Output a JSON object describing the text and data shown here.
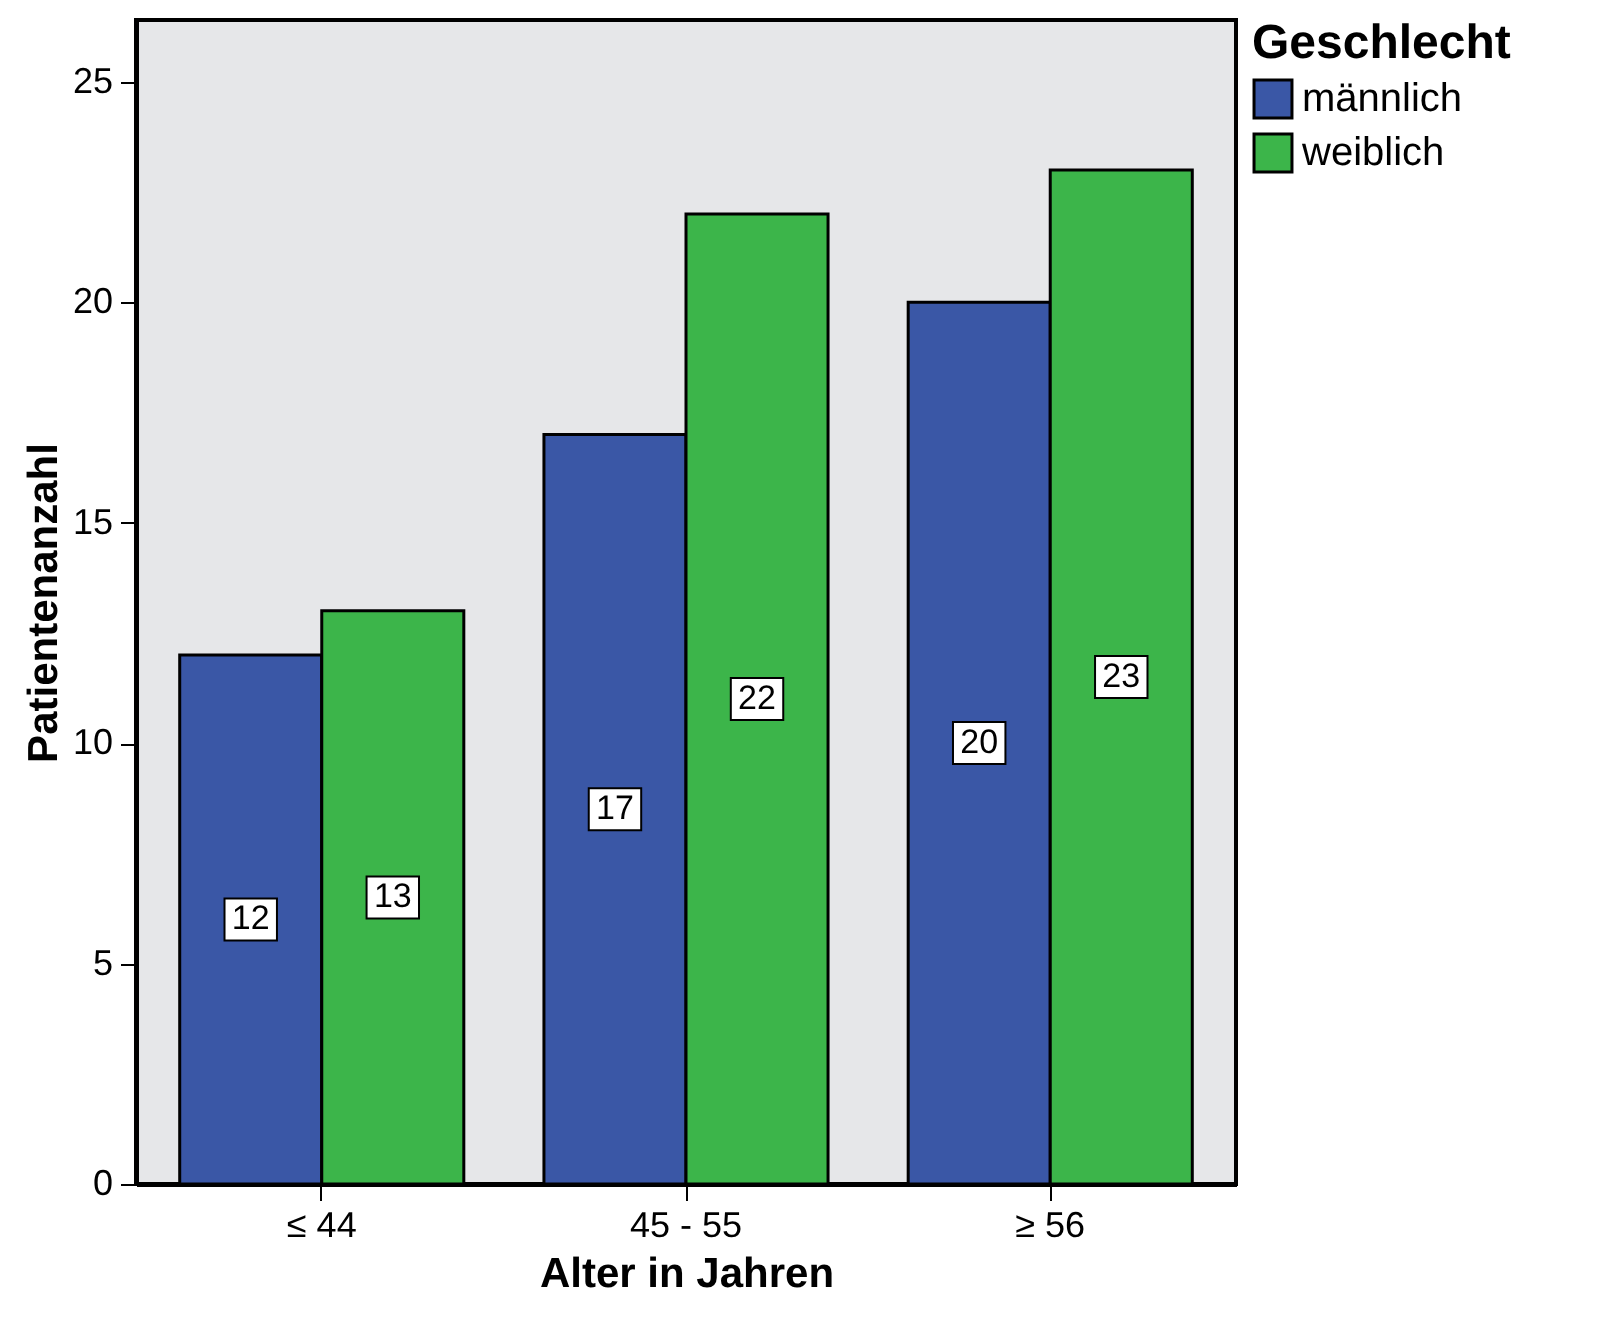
{
  "chart_data": {
    "type": "bar",
    "xlabel": "Alter in Jahren",
    "ylabel": "Patientenanzahl",
    "legend_title": "Geschlecht",
    "categories": [
      "≤ 44",
      "45 - 55",
      "≥ 56"
    ],
    "series": [
      {
        "name": "männlich",
        "color": "#3a57a6",
        "values": [
          12,
          17,
          20
        ]
      },
      {
        "name": "weiblich",
        "color": "#3cb54a",
        "values": [
          13,
          22,
          23
        ]
      }
    ],
    "ylim": [
      0,
      26.4
    ],
    "yticks": [
      0,
      5,
      10,
      15,
      20,
      25
    ],
    "grid": false,
    "legend": "top right",
    "data_labels": true
  }
}
